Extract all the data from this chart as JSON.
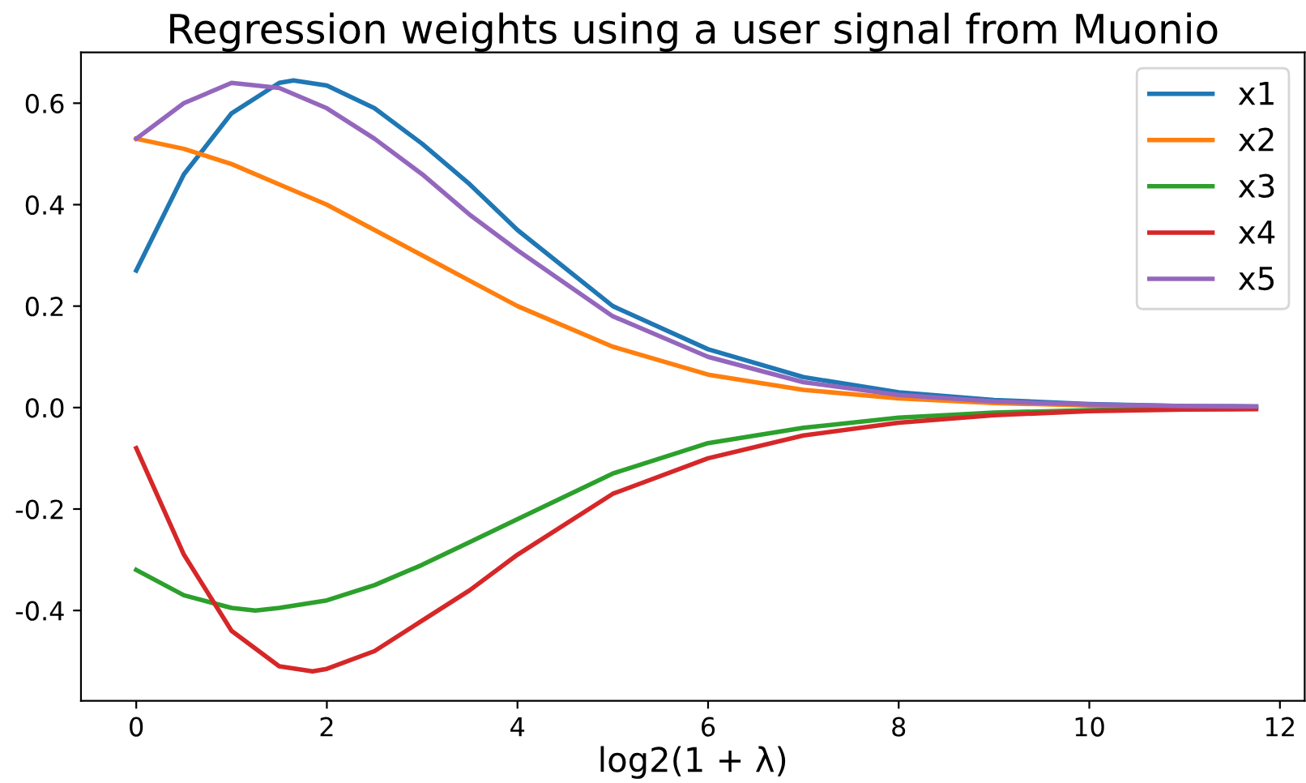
{
  "chart_data": {
    "type": "line",
    "title": "Regression weights using a user signal from Muonio",
    "xlabel": "log2(1 + λ)",
    "series": [
      {
        "name": "x1",
        "color": "#1f77b4",
        "x": [
          0,
          0.5,
          1,
          1.5,
          1.65,
          2,
          2.5,
          3,
          3.5,
          4,
          5,
          6,
          7,
          8,
          9,
          10,
          11,
          11.75
        ],
        "values": [
          0.27,
          0.46,
          0.58,
          0.64,
          0.645,
          0.635,
          0.59,
          0.52,
          0.44,
          0.35,
          0.2,
          0.115,
          0.06,
          0.03,
          0.015,
          0.007,
          0.003,
          0.002
        ]
      },
      {
        "name": "x2",
        "color": "#ff7f0e",
        "x": [
          0,
          0.5,
          1,
          1.5,
          2,
          2.5,
          3,
          3.5,
          4,
          5,
          6,
          7,
          8,
          9,
          10,
          11,
          11.75
        ],
        "values": [
          0.53,
          0.51,
          0.48,
          0.44,
          0.4,
          0.35,
          0.3,
          0.25,
          0.2,
          0.12,
          0.065,
          0.035,
          0.018,
          0.009,
          0.004,
          0.002,
          0.001
        ]
      },
      {
        "name": "x3",
        "color": "#2ca02c",
        "x": [
          0,
          0.5,
          1,
          1.25,
          1.5,
          2,
          2.5,
          3,
          3.5,
          4,
          5,
          6,
          7,
          8,
          9,
          10,
          11,
          11.75
        ],
        "values": [
          -0.32,
          -0.37,
          -0.395,
          -0.4,
          -0.395,
          -0.38,
          -0.35,
          -0.31,
          -0.265,
          -0.22,
          -0.13,
          -0.07,
          -0.04,
          -0.02,
          -0.01,
          -0.005,
          -0.002,
          -0.001
        ]
      },
      {
        "name": "x4",
        "color": "#d62728",
        "x": [
          0,
          0.5,
          1,
          1.5,
          1.85,
          2,
          2.5,
          3,
          3.5,
          4,
          5,
          6,
          7,
          8,
          9,
          10,
          11,
          11.75
        ],
        "values": [
          -0.08,
          -0.29,
          -0.44,
          -0.51,
          -0.52,
          -0.515,
          -0.48,
          -0.42,
          -0.36,
          -0.29,
          -0.17,
          -0.1,
          -0.055,
          -0.03,
          -0.015,
          -0.007,
          -0.004,
          -0.003
        ]
      },
      {
        "name": "x5",
        "color": "#9467bd",
        "x": [
          0,
          0.5,
          1,
          1.5,
          2,
          2.5,
          3,
          3.5,
          4,
          5,
          6,
          7,
          8,
          9,
          10,
          11,
          11.75
        ],
        "values": [
          0.53,
          0.6,
          0.64,
          0.63,
          0.59,
          0.53,
          0.46,
          0.38,
          0.31,
          0.18,
          0.1,
          0.05,
          0.025,
          0.012,
          0.006,
          0.003,
          0.002
        ]
      }
    ],
    "xlim": [
      -0.58,
      12.26
    ],
    "xticks": [
      0,
      2,
      4,
      6,
      8,
      10,
      12
    ],
    "ylim": [
      -0.578,
      0.7
    ],
    "yticks": [
      -0.4,
      -0.2,
      {
        "value": 0,
        "label": "0.0"
      },
      0.2,
      0.4,
      0.6
    ],
    "grid": false,
    "legend": "top right"
  }
}
